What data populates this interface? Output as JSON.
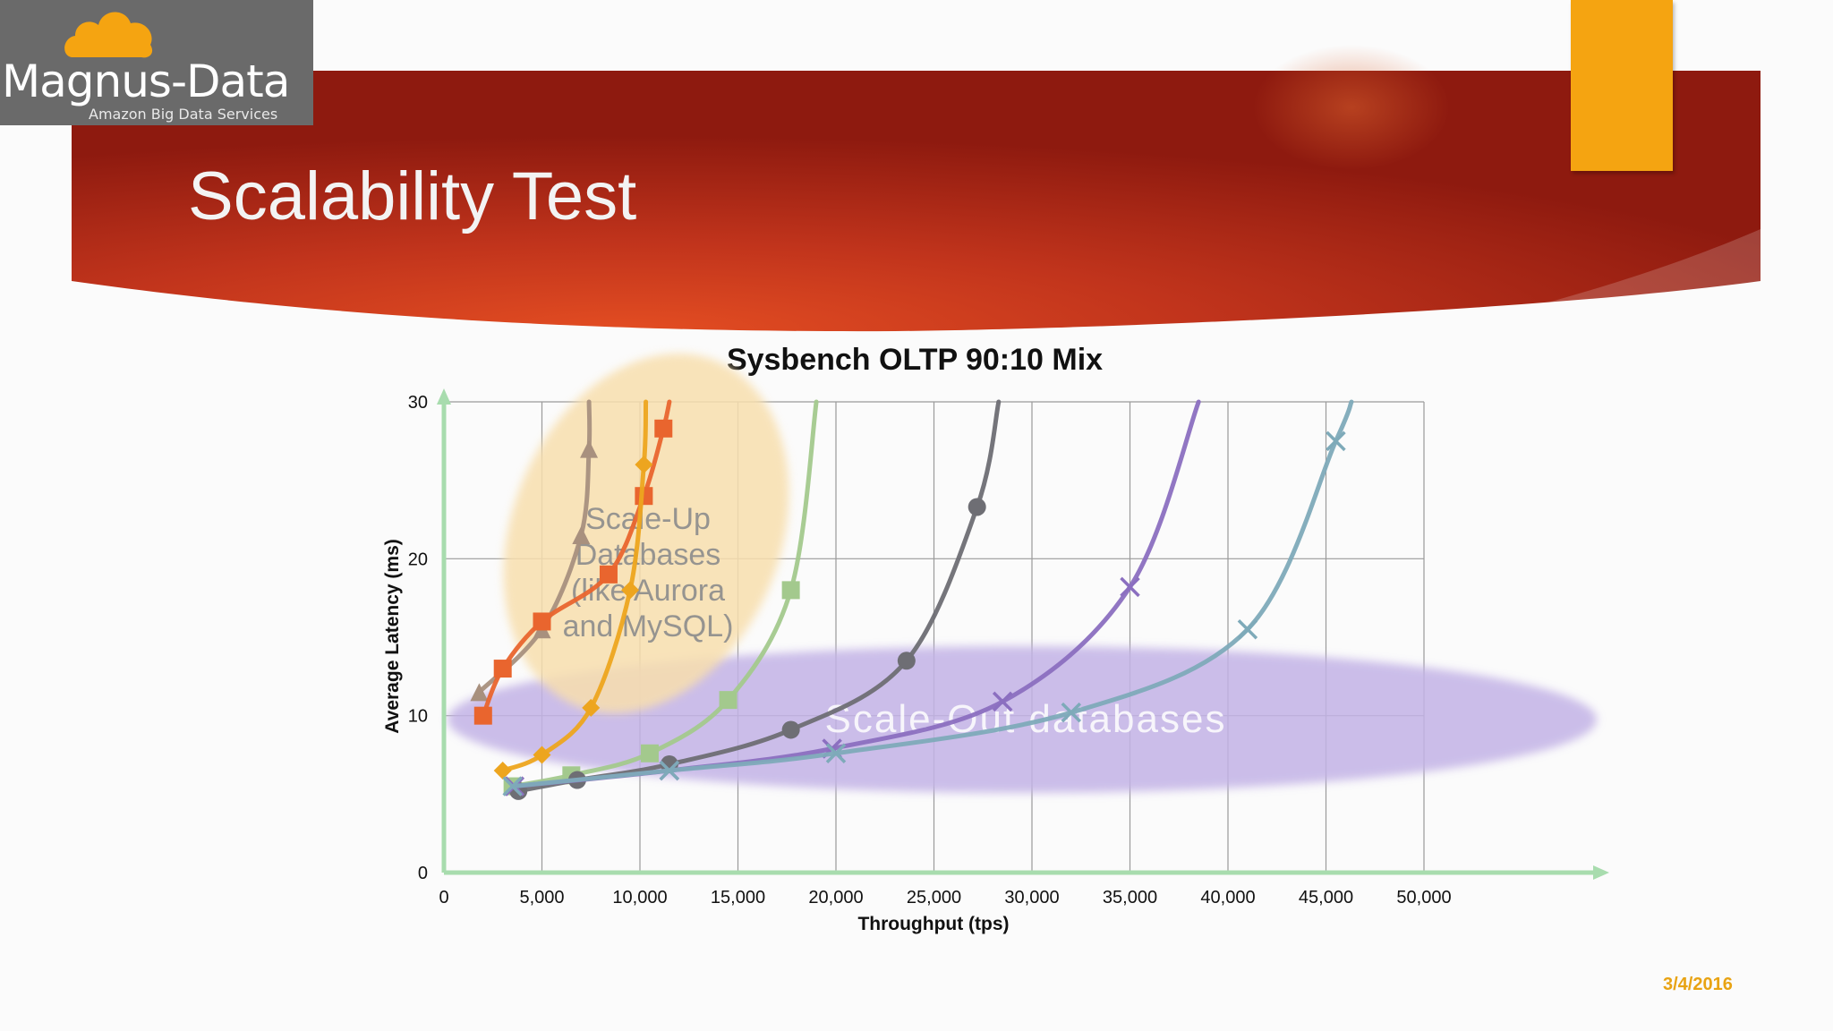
{
  "slide": {
    "title": "Scalability Test",
    "date": "3/4/2016"
  },
  "logo": {
    "name": "Magnus-Data",
    "tagline": "Amazon Big Data Services",
    "icon": "cloud-icon"
  },
  "colors": {
    "banner_red": "#b8281b",
    "banner_orange": "#e04b22",
    "accent_orange": "#f5a411",
    "logo_grey": "#6a6a6a",
    "axis_green": "#a8dcae",
    "scale_up_ellipse": "#f8dfae",
    "scale_out_ellipse": "#c3b3e6"
  },
  "chart_data": {
    "type": "line",
    "title": "Sysbench OLTP 90:10 Mix",
    "xlabel": "Throughput (tps)",
    "ylabel": "Average Latency (ms)",
    "xlim": [
      0,
      50000
    ],
    "ylim": [
      0,
      30
    ],
    "x_ticks": [
      "0",
      "5,000",
      "10,000",
      "15,000",
      "20,000",
      "25,000",
      "30,000",
      "35,000",
      "40,000",
      "45,000",
      "50,000"
    ],
    "y_ticks": [
      "0",
      "10",
      "20",
      "30"
    ],
    "grid": true,
    "legend": "none",
    "annotations": [
      {
        "text": "Scale-Up Databases (like Aurora and MySQL)",
        "lines": [
          "Scale-Up",
          "Databases",
          "(like Aurora",
          "and MySQL)"
        ]
      },
      {
        "text": "Scale-Out databases",
        "lines": [
          "Scale-Out databases"
        ]
      }
    ],
    "series": [
      {
        "color": "#a8907e",
        "marker": "triangle",
        "points": [
          [
            1800,
            11.5
          ],
          [
            5000,
            15.5
          ],
          [
            7000,
            21.5
          ],
          [
            7400,
            27
          ],
          [
            7400,
            30
          ]
        ]
      },
      {
        "color": "#e9652e",
        "marker": "square",
        "points": [
          [
            2000,
            10
          ],
          [
            3000,
            13
          ],
          [
            5000,
            16
          ],
          [
            8400,
            19
          ],
          [
            10200,
            24
          ],
          [
            11200,
            28.3
          ],
          [
            11500,
            30
          ]
        ]
      },
      {
        "color": "#eda51f",
        "marker": "diamond",
        "points": [
          [
            3000,
            6.5
          ],
          [
            5000,
            7.5
          ],
          [
            7500,
            10.5
          ],
          [
            9500,
            18
          ],
          [
            10200,
            26
          ],
          [
            10300,
            30
          ]
        ]
      },
      {
        "color": "#a3c98d",
        "marker": "square",
        "points": [
          [
            3500,
            5.5
          ],
          [
            6500,
            6.2
          ],
          [
            10500,
            7.6
          ],
          [
            14500,
            11
          ],
          [
            17700,
            18
          ],
          [
            19000,
            30
          ]
        ]
      },
      {
        "color": "#6e6e74",
        "marker": "circle",
        "points": [
          [
            3800,
            5.2
          ],
          [
            6800,
            5.9
          ],
          [
            11500,
            6.9
          ],
          [
            17700,
            9.1
          ],
          [
            23600,
            13.5
          ],
          [
            27200,
            23.3
          ],
          [
            28300,
            30
          ]
        ]
      },
      {
        "color": "#8b6fc0",
        "marker": "x",
        "points": [
          [
            3600,
            5.5
          ],
          [
            11500,
            6.5
          ],
          [
            19800,
            7.9
          ],
          [
            28500,
            10.9
          ],
          [
            35000,
            18.2
          ],
          [
            38500,
            30
          ]
        ]
      },
      {
        "color": "#7eaab9",
        "marker": "x",
        "points": [
          [
            3500,
            5.5
          ],
          [
            11500,
            6.5
          ],
          [
            20000,
            7.6
          ],
          [
            32000,
            10.2
          ],
          [
            41000,
            15.5
          ],
          [
            45500,
            27.5
          ],
          [
            46300,
            30
          ]
        ]
      }
    ]
  }
}
